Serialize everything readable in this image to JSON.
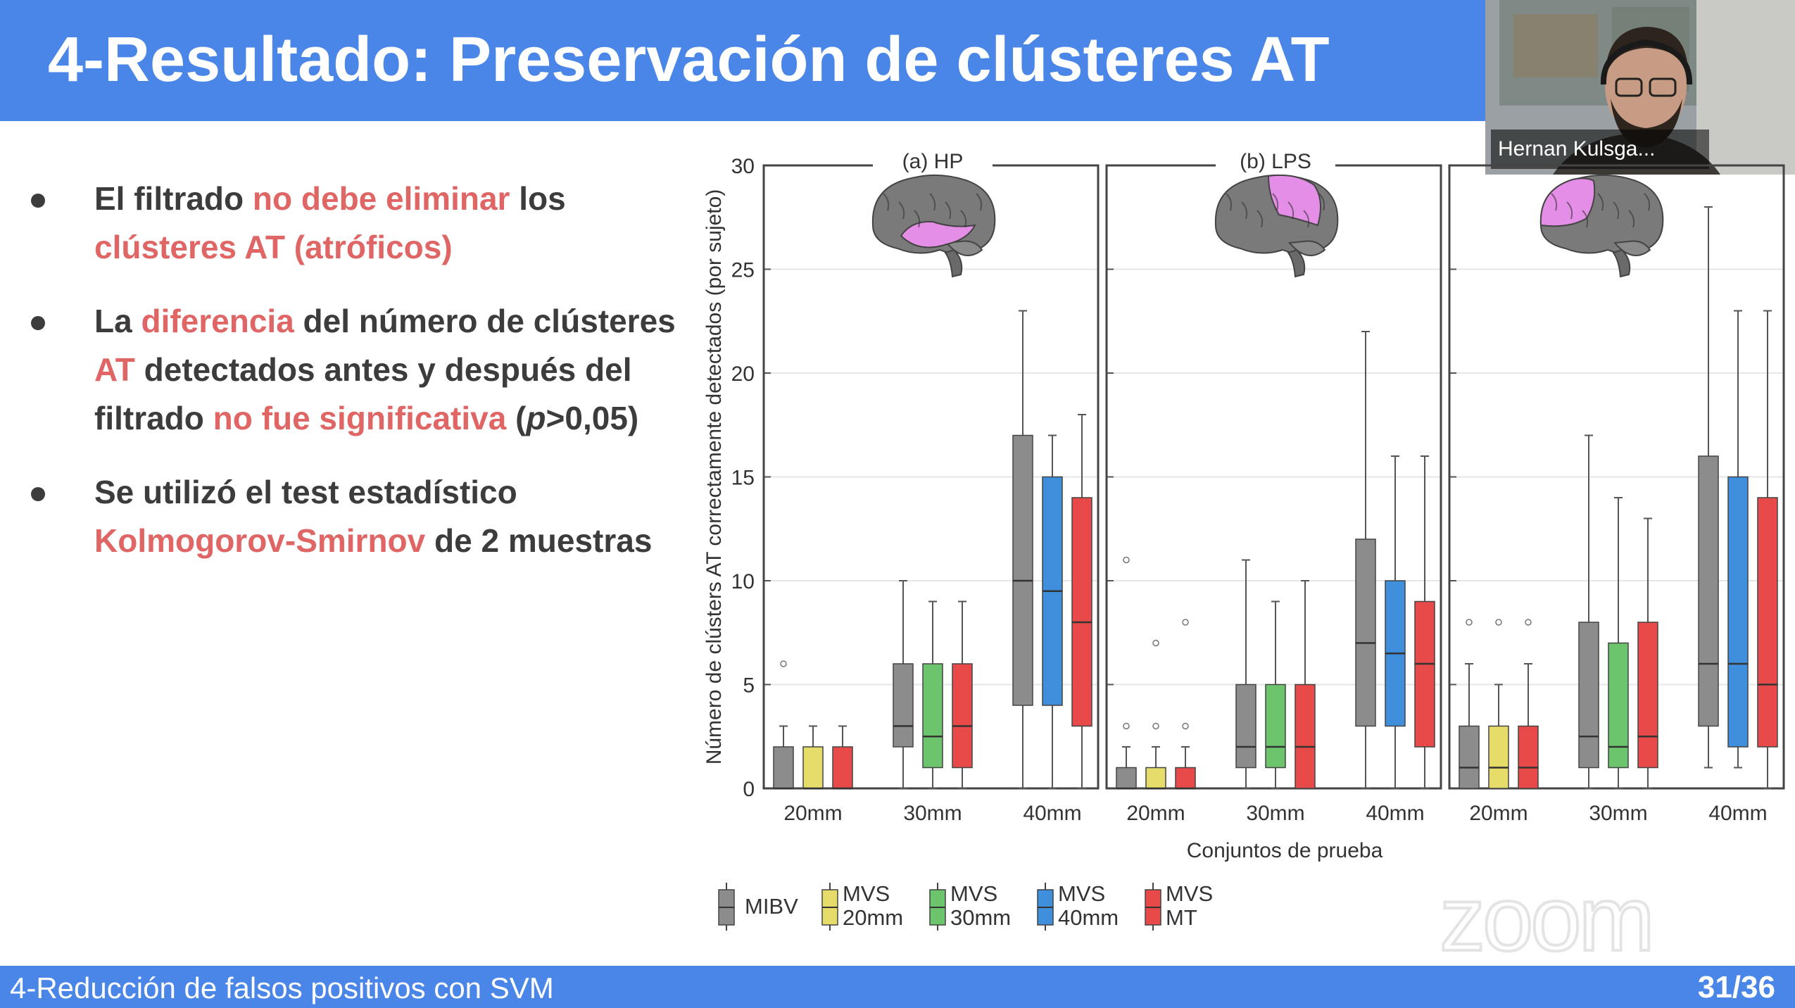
{
  "slide": {
    "title": "4-Resultado: Preservación de clústeres AT",
    "footer_title": "4-Reducción de falsos positivos con SVM",
    "page_number": "31/36"
  },
  "participant": {
    "name": "Hernan Kulsga..."
  },
  "bullets": [
    {
      "parts": [
        {
          "text": "El filtrado ",
          "style": "normal"
        },
        {
          "text": "no debe eliminar",
          "style": "highlight"
        },
        {
          "text": " los ",
          "style": "normal"
        },
        {
          "text": "clústeres AT (atróficos)",
          "style": "highlight"
        }
      ]
    },
    {
      "parts": [
        {
          "text": "La ",
          "style": "normal"
        },
        {
          "text": "diferencia",
          "style": "highlight"
        },
        {
          "text": " del número de clústeres ",
          "style": "normal"
        },
        {
          "text": "AT",
          "style": "highlight"
        },
        {
          "text": " detectados antes y después del filtrado ",
          "style": "normal"
        },
        {
          "text": "no fue significativa",
          "style": "highlight"
        },
        {
          "text": " (",
          "style": "normal"
        },
        {
          "text": "p",
          "style": "italic"
        },
        {
          "text": ">0,05)",
          "style": "normal"
        }
      ]
    },
    {
      "parts": [
        {
          "text": "Se utilizó el test estadístico ",
          "style": "normal"
        },
        {
          "text": "Kolmogorov-Smirnov",
          "style": "highlight"
        },
        {
          "text": " de 2 muestras",
          "style": "normal"
        }
      ]
    }
  ],
  "colors": {
    "accent_blue": "#4a86e8",
    "highlight_red": "#e06666",
    "body_text": "#3c3c3c",
    "brain_gray": "#7a7a7a",
    "brain_highlight": "#e58ee8"
  },
  "chart_data": {
    "type": "boxplot",
    "ylabel": "Número de clústers AT correctamente detectados (por sujeto)",
    "xlabel": "Conjuntos de prueba",
    "ylim": [
      0,
      30
    ],
    "yticks": [
      "0",
      "5",
      "10",
      "15",
      "20",
      "25",
      "30"
    ],
    "categories": [
      "20mm",
      "30mm",
      "40mm"
    ],
    "legend": [
      {
        "key": "MIBV",
        "label": [
          "MIBV"
        ],
        "color": "#8c8c8c"
      },
      {
        "key": "MVS20",
        "label": [
          "MVS",
          "20mm"
        ],
        "color": "#e6dc6a"
      },
      {
        "key": "MVS30",
        "label": [
          "MVS",
          "30mm"
        ],
        "color": "#6cc46c"
      },
      {
        "key": "MVS40",
        "label": [
          "MVS",
          "40mm"
        ],
        "color": "#3f8fdc"
      },
      {
        "key": "MVSMT",
        "label": [
          "MVS",
          "MT"
        ],
        "color": "#e84a4a"
      }
    ],
    "panels": [
      {
        "title": "(a) HP",
        "brain_icon": "brain-temporal-highlight",
        "groups": [
          {
            "category": "20mm",
            "boxes": [
              {
                "series": "MIBV",
                "whislo": 0,
                "q1": 0,
                "med": 0,
                "q3": 2,
                "whishi": 3,
                "fliers": [
                  6
                ]
              },
              {
                "series": "MVS20",
                "whislo": 0,
                "q1": 0,
                "med": 0,
                "q3": 2,
                "whishi": 3,
                "fliers": []
              },
              {
                "series": "MVSMT",
                "whislo": 0,
                "q1": 0,
                "med": 0,
                "q3": 2,
                "whishi": 3,
                "fliers": []
              }
            ]
          },
          {
            "category": "30mm",
            "boxes": [
              {
                "series": "MIBV",
                "whislo": 0,
                "q1": 2,
                "med": 3,
                "q3": 6,
                "whishi": 10,
                "fliers": []
              },
              {
                "series": "MVS30",
                "whislo": 0,
                "q1": 1,
                "med": 2.5,
                "q3": 6,
                "whishi": 9,
                "fliers": []
              },
              {
                "series": "MVSMT",
                "whislo": 0,
                "q1": 1,
                "med": 3,
                "q3": 6,
                "whishi": 9,
                "fliers": []
              }
            ]
          },
          {
            "category": "40mm",
            "boxes": [
              {
                "series": "MIBV",
                "whislo": 0,
                "q1": 4,
                "med": 10,
                "q3": 17,
                "whishi": 23,
                "fliers": []
              },
              {
                "series": "MVS40",
                "whislo": 0,
                "q1": 4,
                "med": 9.5,
                "q3": 15,
                "whishi": 17,
                "fliers": []
              },
              {
                "series": "MVSMT",
                "whislo": 0,
                "q1": 3,
                "med": 8,
                "q3": 14,
                "whishi": 18,
                "fliers": []
              }
            ]
          }
        ]
      },
      {
        "title": "(b) LPS",
        "brain_icon": "brain-parietal-highlight",
        "groups": [
          {
            "category": "20mm",
            "boxes": [
              {
                "series": "MIBV",
                "whislo": 0,
                "q1": 0,
                "med": 0,
                "q3": 1,
                "whishi": 2,
                "fliers": [
                  3,
                  11
                ]
              },
              {
                "series": "MVS20",
                "whislo": 0,
                "q1": 0,
                "med": 0,
                "q3": 1,
                "whishi": 2,
                "fliers": [
                  3,
                  7
                ]
              },
              {
                "series": "MVSMT",
                "whislo": 0,
                "q1": 0,
                "med": 0,
                "q3": 1,
                "whishi": 2,
                "fliers": [
                  3,
                  8
                ]
              }
            ]
          },
          {
            "category": "30mm",
            "boxes": [
              {
                "series": "MIBV",
                "whislo": 0,
                "q1": 1,
                "med": 2,
                "q3": 5,
                "whishi": 11,
                "fliers": []
              },
              {
                "series": "MVS30",
                "whislo": 0,
                "q1": 1,
                "med": 2,
                "q3": 5,
                "whishi": 9,
                "fliers": []
              },
              {
                "series": "MVSMT",
                "whislo": 0,
                "q1": 0,
                "med": 2,
                "q3": 5,
                "whishi": 10,
                "fliers": []
              }
            ]
          },
          {
            "category": "40mm",
            "boxes": [
              {
                "series": "MIBV",
                "whislo": 0,
                "q1": 3,
                "med": 7,
                "q3": 12,
                "whishi": 22,
                "fliers": []
              },
              {
                "series": "MVS40",
                "whislo": 0,
                "q1": 3,
                "med": 6.5,
                "q3": 10,
                "whishi": 16,
                "fliers": []
              },
              {
                "series": "MVSMT",
                "whislo": 0,
                "q1": 2,
                "med": 6,
                "q3": 9,
                "whishi": 16,
                "fliers": []
              }
            ]
          }
        ]
      },
      {
        "title": "",
        "brain_icon": "brain-frontal-highlight",
        "groups": [
          {
            "category": "20mm",
            "boxes": [
              {
                "series": "MIBV",
                "whislo": 0,
                "q1": 0,
                "med": 1,
                "q3": 3,
                "whishi": 6,
                "fliers": [
                  8
                ]
              },
              {
                "series": "MVS20",
                "whislo": 0,
                "q1": 0,
                "med": 1,
                "q3": 3,
                "whishi": 5,
                "fliers": [
                  8
                ]
              },
              {
                "series": "MVSMT",
                "whislo": 0,
                "q1": 0,
                "med": 1,
                "q3": 3,
                "whishi": 6,
                "fliers": [
                  8
                ]
              }
            ]
          },
          {
            "category": "30mm",
            "boxes": [
              {
                "series": "MIBV",
                "whislo": 0,
                "q1": 1,
                "med": 2.5,
                "q3": 8,
                "whishi": 17,
                "fliers": []
              },
              {
                "series": "MVS30",
                "whislo": 0,
                "q1": 1,
                "med": 2,
                "q3": 7,
                "whishi": 14,
                "fliers": []
              },
              {
                "series": "MVSMT",
                "whislo": 0,
                "q1": 1,
                "med": 2.5,
                "q3": 8,
                "whishi": 13,
                "fliers": []
              }
            ]
          },
          {
            "category": "40mm",
            "boxes": [
              {
                "series": "MIBV",
                "whislo": 1,
                "q1": 3,
                "med": 6,
                "q3": 16,
                "whishi": 28,
                "fliers": []
              },
              {
                "series": "MVS40",
                "whislo": 1,
                "q1": 2,
                "med": 6,
                "q3": 15,
                "whishi": 23,
                "fliers": []
              },
              {
                "series": "MVSMT",
                "whislo": 0,
                "q1": 2,
                "med": 5,
                "q3": 14,
                "whishi": 23,
                "fliers": []
              }
            ]
          }
        ]
      }
    ]
  }
}
